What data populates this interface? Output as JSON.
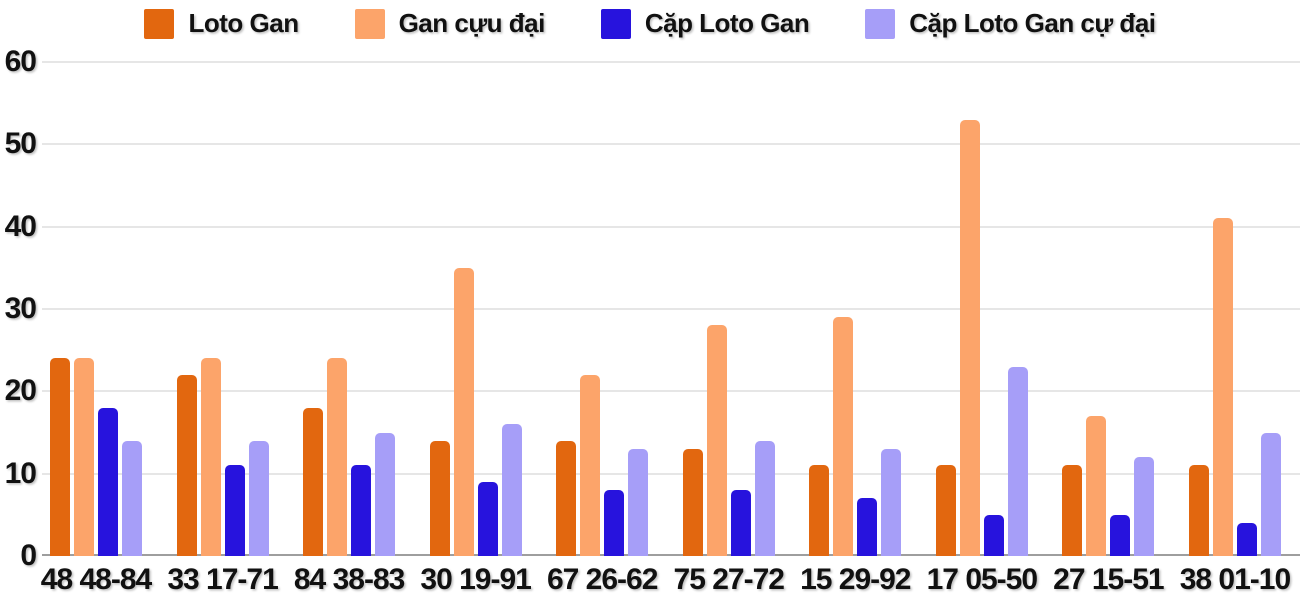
{
  "chart_data": {
    "type": "bar",
    "title": "",
    "xlabel": "",
    "ylabel": "",
    "ylim": [
      0,
      60
    ],
    "y_ticks": [
      0,
      10,
      20,
      30,
      40,
      50,
      60
    ],
    "grid": true,
    "legend_position": "top",
    "background_color": "#ffffff",
    "gridline_color": "#e6e6e6",
    "axis_line_color": "#9e9e9e",
    "text_color": "#111111",
    "categories": [
      "48 48-84",
      "33 17-71",
      "84 38-83",
      "30 19-91",
      "67 26-62",
      "75 27-72",
      "15 29-92",
      "17 05-50",
      "27 15-51",
      "38 01-10"
    ],
    "series": [
      {
        "name": "Loto Gan",
        "color": "#e2670f",
        "values": [
          24,
          22,
          18,
          14,
          14,
          13,
          11,
          11,
          11,
          11
        ]
      },
      {
        "name": "Gan cựu đại",
        "color": "#fca46a",
        "values": [
          24,
          24,
          24,
          35,
          22,
          28,
          29,
          53,
          17,
          41
        ]
      },
      {
        "name": "Cặp Loto Gan",
        "color": "#2713dd",
        "values": [
          18,
          11,
          11,
          9,
          8,
          8,
          7,
          5,
          5,
          4
        ]
      },
      {
        "name": "Cặp Loto Gan cự đại",
        "color": "#a69ef8",
        "values": [
          14,
          14,
          15,
          16,
          13,
          14,
          13,
          23,
          12,
          15
        ]
      }
    ]
  }
}
